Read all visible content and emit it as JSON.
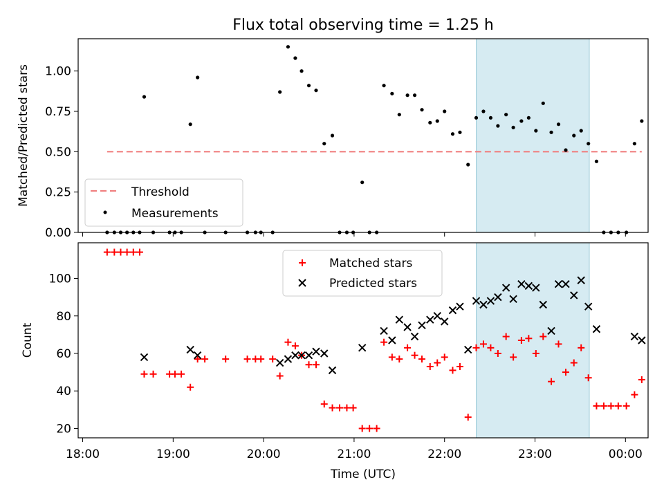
{
  "chart_data": [
    {
      "type": "scatter",
      "title": "Flux total observing time = 1.25 h",
      "xlabel": "",
      "ylabel": "Matched/Predicted stars",
      "ylim": [
        0,
        1.2
      ],
      "yticks": [
        0.0,
        0.25,
        0.5,
        0.75,
        1.0
      ],
      "ytick_labels": [
        "0.00",
        "0.25",
        "0.50",
        "0.75",
        "1.00"
      ],
      "xlim_hours": [
        17.95,
        24.25
      ],
      "shaded_region_hours": [
        22.35,
        23.6
      ],
      "threshold": {
        "name": "Threshold",
        "value": 0.5,
        "x_start": 18.27,
        "x_end": 24.18,
        "color": "#f08080"
      },
      "legend": {
        "position": "lower-left",
        "entries": [
          "Threshold",
          "Measurements"
        ]
      },
      "series": [
        {
          "name": "Measurements",
          "marker": "dot",
          "color": "#000000",
          "points": [
            [
              18.27,
              0
            ],
            [
              18.35,
              0
            ],
            [
              18.42,
              0
            ],
            [
              18.49,
              0
            ],
            [
              18.56,
              0
            ],
            [
              18.63,
              0
            ],
            [
              18.68,
              0.84
            ],
            [
              18.78,
              0
            ],
            [
              18.96,
              0
            ],
            [
              19.02,
              0
            ],
            [
              19.09,
              0
            ],
            [
              19.19,
              0.67
            ],
            [
              19.27,
              0.96
            ],
            [
              19.35,
              0
            ],
            [
              19.58,
              0
            ],
            [
              19.82,
              0
            ],
            [
              19.91,
              0
            ],
            [
              19.97,
              0
            ],
            [
              20.1,
              0
            ],
            [
              20.18,
              0.87
            ],
            [
              20.27,
              1.15
            ],
            [
              20.35,
              1.08
            ],
            [
              20.42,
              1.0
            ],
            [
              20.5,
              0.91
            ],
            [
              20.58,
              0.88
            ],
            [
              20.67,
              0.55
            ],
            [
              20.76,
              0.6
            ],
            [
              20.84,
              0
            ],
            [
              20.92,
              0
            ],
            [
              20.99,
              0
            ],
            [
              21.09,
              0.31
            ],
            [
              21.17,
              0
            ],
            [
              21.25,
              0
            ],
            [
              21.33,
              0.91
            ],
            [
              21.42,
              0.86
            ],
            [
              21.5,
              0.73
            ],
            [
              21.59,
              0.85
            ],
            [
              21.67,
              0.85
            ],
            [
              21.75,
              0.76
            ],
            [
              21.84,
              0.68
            ],
            [
              21.92,
              0.69
            ],
            [
              22.0,
              0.75
            ],
            [
              22.09,
              0.61
            ],
            [
              22.17,
              0.62
            ],
            [
              22.26,
              0.42
            ],
            [
              22.35,
              0.71
            ],
            [
              22.43,
              0.75
            ],
            [
              22.51,
              0.71
            ],
            [
              22.59,
              0.66
            ],
            [
              22.68,
              0.73
            ],
            [
              22.76,
              0.65
            ],
            [
              22.85,
              0.69
            ],
            [
              22.93,
              0.71
            ],
            [
              23.01,
              0.63
            ],
            [
              23.09,
              0.8
            ],
            [
              23.18,
              0.62
            ],
            [
              23.26,
              0.67
            ],
            [
              23.34,
              0.51
            ],
            [
              23.43,
              0.6
            ],
            [
              23.51,
              0.63
            ],
            [
              23.59,
              0.55
            ],
            [
              23.68,
              0.44
            ],
            [
              23.76,
              0
            ],
            [
              23.84,
              0
            ],
            [
              23.92,
              0
            ],
            [
              24.01,
              0
            ],
            [
              24.1,
              0.55
            ],
            [
              24.18,
              0.69
            ]
          ]
        }
      ]
    },
    {
      "type": "scatter",
      "title": "",
      "xlabel": "Time (UTC)",
      "ylabel": "Count",
      "ylim": [
        15,
        119
      ],
      "yticks": [
        20,
        40,
        60,
        80,
        100
      ],
      "ytick_labels": [
        "20",
        "40",
        "60",
        "80",
        "100"
      ],
      "xlim_hours": [
        17.95,
        24.25
      ],
      "xticks_hours": [
        18,
        19,
        20,
        21,
        22,
        23,
        24
      ],
      "xtick_labels": [
        "18:00",
        "19:00",
        "20:00",
        "21:00",
        "22:00",
        "23:00",
        "00:00"
      ],
      "shaded_region_hours": [
        22.35,
        23.6
      ],
      "legend": {
        "position": "upper-center",
        "entries": [
          "Matched stars",
          "Predicted stars"
        ]
      },
      "series": [
        {
          "name": "Matched stars",
          "marker": "plus",
          "color": "#ff0000",
          "points": [
            [
              18.27,
              114
            ],
            [
              18.35,
              114
            ],
            [
              18.42,
              114
            ],
            [
              18.49,
              114
            ],
            [
              18.56,
              114
            ],
            [
              18.63,
              114
            ],
            [
              18.68,
              49
            ],
            [
              18.78,
              49
            ],
            [
              18.96,
              49
            ],
            [
              19.02,
              49
            ],
            [
              19.09,
              49
            ],
            [
              19.19,
              42
            ],
            [
              19.27,
              57
            ],
            [
              19.35,
              57
            ],
            [
              19.58,
              57
            ],
            [
              19.82,
              57
            ],
            [
              19.91,
              57
            ],
            [
              19.97,
              57
            ],
            [
              20.1,
              57
            ],
            [
              20.18,
              48
            ],
            [
              20.27,
              66
            ],
            [
              20.35,
              64
            ],
            [
              20.42,
              59
            ],
            [
              20.5,
              54
            ],
            [
              20.58,
              54
            ],
            [
              20.67,
              33
            ],
            [
              20.76,
              31
            ],
            [
              20.84,
              31
            ],
            [
              20.92,
              31
            ],
            [
              20.99,
              31
            ],
            [
              21.09,
              20
            ],
            [
              21.17,
              20
            ],
            [
              21.25,
              20
            ],
            [
              21.33,
              66
            ],
            [
              21.42,
              58
            ],
            [
              21.5,
              57
            ],
            [
              21.59,
              63
            ],
            [
              21.67,
              59
            ],
            [
              21.75,
              57
            ],
            [
              21.84,
              53
            ],
            [
              21.92,
              55
            ],
            [
              22.0,
              58
            ],
            [
              22.09,
              51
            ],
            [
              22.17,
              53
            ],
            [
              22.26,
              26
            ],
            [
              22.35,
              63
            ],
            [
              22.43,
              65
            ],
            [
              22.51,
              63
            ],
            [
              22.59,
              60
            ],
            [
              22.68,
              69
            ],
            [
              22.76,
              58
            ],
            [
              22.85,
              67
            ],
            [
              22.93,
              68
            ],
            [
              23.01,
              60
            ],
            [
              23.09,
              69
            ],
            [
              23.18,
              45
            ],
            [
              23.26,
              65
            ],
            [
              23.34,
              50
            ],
            [
              23.43,
              55
            ],
            [
              23.51,
              63
            ],
            [
              23.59,
              47
            ],
            [
              23.68,
              32
            ],
            [
              23.76,
              32
            ],
            [
              23.84,
              32
            ],
            [
              23.92,
              32
            ],
            [
              24.01,
              32
            ],
            [
              24.1,
              38
            ],
            [
              24.18,
              46
            ]
          ]
        },
        {
          "name": "Predicted stars",
          "marker": "x",
          "color": "#000000",
          "points": [
            [
              18.68,
              58
            ],
            [
              19.19,
              62
            ],
            [
              19.27,
              59
            ],
            [
              20.18,
              55
            ],
            [
              20.27,
              57
            ],
            [
              20.35,
              59
            ],
            [
              20.42,
              59
            ],
            [
              20.5,
              59
            ],
            [
              20.58,
              61
            ],
            [
              20.67,
              60
            ],
            [
              20.76,
              51
            ],
            [
              21.09,
              63
            ],
            [
              21.33,
              72
            ],
            [
              21.42,
              67
            ],
            [
              21.5,
              78
            ],
            [
              21.59,
              74
            ],
            [
              21.67,
              69
            ],
            [
              21.75,
              75
            ],
            [
              21.84,
              78
            ],
            [
              21.92,
              80
            ],
            [
              22.0,
              77
            ],
            [
              22.09,
              83
            ],
            [
              22.17,
              85
            ],
            [
              22.26,
              62
            ],
            [
              22.35,
              88
            ],
            [
              22.43,
              86
            ],
            [
              22.51,
              88
            ],
            [
              22.59,
              90
            ],
            [
              22.68,
              95
            ],
            [
              22.76,
              89
            ],
            [
              22.85,
              97
            ],
            [
              22.93,
              96
            ],
            [
              23.01,
              95
            ],
            [
              23.09,
              86
            ],
            [
              23.18,
              72
            ],
            [
              23.26,
              97
            ],
            [
              23.34,
              97
            ],
            [
              23.43,
              91
            ],
            [
              23.51,
              99
            ],
            [
              23.59,
              85
            ],
            [
              23.68,
              73
            ],
            [
              24.1,
              69
            ],
            [
              24.18,
              67
            ]
          ]
        }
      ]
    }
  ]
}
